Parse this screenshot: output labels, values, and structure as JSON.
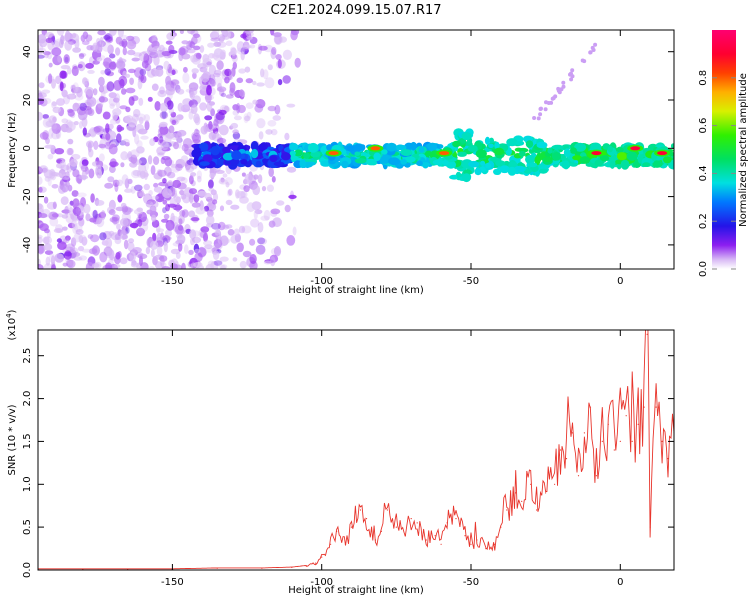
{
  "title": "C2E1.2024.099.15.07.R17",
  "chart_data": [
    {
      "type": "heatmap",
      "name": "spectrogram",
      "xlabel": "Height of straight line (km)",
      "ylabel": "Frequency (Hz)",
      "xlim": [
        -195,
        18
      ],
      "ylim": [
        -50,
        49
      ],
      "xticks": [
        -150,
        -100,
        -50,
        0
      ],
      "yticks": [
        -40,
        -20,
        0,
        20,
        40
      ],
      "colorbar": {
        "label": "Normalized spectral amplitude",
        "range": [
          0,
          1
        ],
        "ticks": [
          0.0,
          0.2,
          0.4,
          0.6,
          0.8
        ],
        "tick_labels": [
          "0.0",
          "0.2",
          "0.4",
          "0.6",
          "0.8"
        ]
      },
      "features": [
        {
          "description": "diffuse noise",
          "x_range": [
            -195,
            -108
          ],
          "y_range": [
            -50,
            49
          ],
          "amplitude": 0.15
        },
        {
          "description": "signal band",
          "x_range": [
            -142,
            18
          ],
          "center_freq": -3,
          "width_hz": 8,
          "amplitude_range": [
            0.1,
            0.95
          ]
        },
        {
          "description": "peak",
          "x": -96,
          "y": -2,
          "amplitude": 0.8
        },
        {
          "description": "peak",
          "x": -82,
          "y": 0,
          "amplitude": 0.8
        },
        {
          "description": "peak",
          "x": -59,
          "y": -2,
          "amplitude": 0.8
        },
        {
          "description": "peak",
          "x": -8,
          "y": -2,
          "amplitude": 0.9
        },
        {
          "description": "peak",
          "x": 5,
          "y": 0,
          "amplitude": 0.92
        },
        {
          "description": "peak",
          "x": 14,
          "y": -2,
          "amplitude": 0.9
        }
      ]
    },
    {
      "type": "line",
      "name": "snr",
      "xlabel": "Height of straight line (km)",
      "ylabel": "SNR (10 * v/v)",
      "scale_label": "(x10",
      "scale_exponent": "4",
      "scale_close": ")",
      "xlim": [
        -195,
        18
      ],
      "ylim": [
        0,
        2.8
      ],
      "xticks": [
        -150,
        -100,
        -50,
        0
      ],
      "yticks": [
        0.0,
        0.5,
        1.0,
        1.5,
        2.0,
        2.5
      ],
      "ytick_labels": [
        "0.0",
        "0.5",
        "1.0",
        "1.5",
        "2.0",
        "2.5"
      ],
      "color": "#e8352c",
      "series": [
        {
          "name": "SNR (x10^4)",
          "x": [
            -195,
            -180,
            -165,
            -150,
            -135,
            -120,
            -110,
            -105,
            -102,
            -100,
            -97,
            -95,
            -92,
            -90,
            -87,
            -85,
            -82,
            -80,
            -78,
            -75,
            -72,
            -70,
            -68,
            -65,
            -62,
            -60,
            -58,
            -55,
            -52,
            -50,
            -48,
            -45,
            -42,
            -40,
            -38,
            -35,
            -33,
            -30,
            -28,
            -25,
            -22,
            -20,
            -18,
            -16,
            -14,
            -12,
            -10,
            -8,
            -6,
            -4,
            -2,
            0,
            2,
            4,
            6,
            8,
            9,
            10,
            12,
            14,
            16,
            18
          ],
          "y": [
            0.01,
            0.01,
            0.01,
            0.01,
            0.02,
            0.02,
            0.03,
            0.05,
            0.08,
            0.15,
            0.3,
            0.45,
            0.3,
            0.5,
            0.7,
            0.6,
            0.35,
            0.45,
            0.7,
            0.5,
            0.4,
            0.6,
            0.55,
            0.35,
            0.4,
            0.3,
            0.55,
            0.6,
            0.4,
            0.3,
            0.35,
            0.25,
            0.3,
            0.5,
            0.7,
            0.9,
            0.8,
            1.0,
            0.7,
            0.9,
            1.0,
            1.4,
            1.3,
            1.6,
            1.1,
            1.6,
            1.9,
            1.1,
            1.5,
            1.7,
            1.4,
            1.5,
            1.8,
            1.5,
            1.7,
            1.9,
            2.75,
            0.5,
            1.9,
            1.5,
            1.3,
            1.6
          ]
        }
      ]
    }
  ]
}
